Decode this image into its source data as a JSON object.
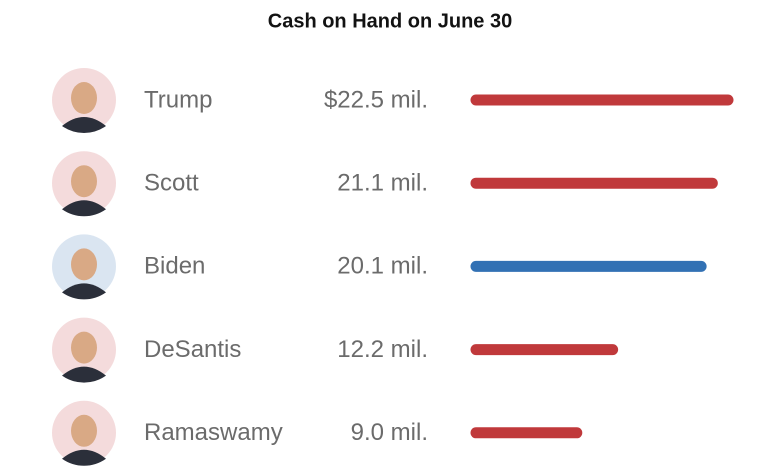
{
  "chart_data": {
    "type": "bar",
    "orientation": "horizontal",
    "title": "Cash on Hand on June 30",
    "categories": [
      "Trump",
      "Scott",
      "Biden",
      "DeSantis",
      "Ramaswamy"
    ],
    "values": [
      22.5,
      21.1,
      20.1,
      12.2,
      9.0
    ],
    "value_labels": [
      "$22.5 mil.",
      "21.1 mil.",
      "20.1 mil.",
      "12.2 mil.",
      "9.0 mil."
    ],
    "colors": [
      "#c0393b",
      "#c0393b",
      "#3271b4",
      "#c0393b",
      "#c0393b"
    ]
  }
}
